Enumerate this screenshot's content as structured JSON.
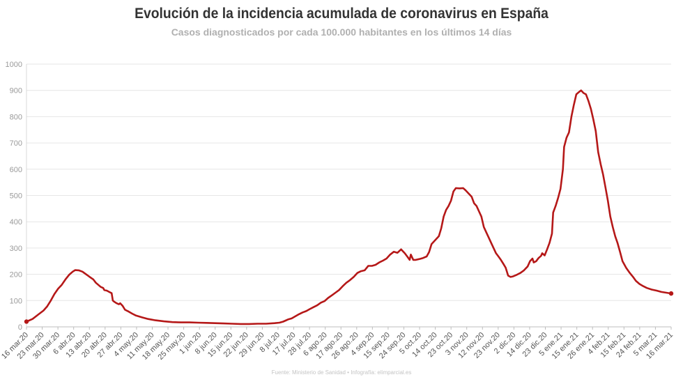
{
  "header": {
    "title": "Evolución de la incidencia acumulada de coronavirus en España",
    "subtitle": "Casos diagnosticados por cada 100.000 habitantes en los últimos 14 días"
  },
  "footer": {
    "source": "Fuente: Ministerio de Sanidad • Infografía: elimparcial.es"
  },
  "chart_data": {
    "type": "line",
    "title": "Evolución de la incidencia acumulada de coronavirus en España",
    "subtitle": "Casos diagnosticados por cada 100.000 habitantes en los últimos 14 días",
    "xlabel": "",
    "ylabel": "",
    "ylim": [
      0,
      1000
    ],
    "yticks": [
      "0",
      "100",
      "200",
      "300",
      "400",
      "500",
      "600",
      "700",
      "800",
      "900",
      "1000"
    ],
    "grid": true,
    "legend": "none",
    "line_color": "#b51818",
    "grid_color": "#e6e6e6",
    "categories": [
      "16 mar.20",
      "23 mar.20",
      "30 mar.20",
      "6 abr.20",
      "13 abr.20",
      "20 abr.20",
      "27 abr.20",
      "4 may.20",
      "11 may.20",
      "18 may.20",
      "25 may.20",
      "1 jun.20",
      "8 jun.20",
      "15 jun.20",
      "22 jun.20",
      "29 jun.20",
      "8 jul.20",
      "17 jul.20",
      "28 jul.20",
      "6 ago.20",
      "17 ago.20",
      "26 ago.20",
      "4 sep.20",
      "15 sep.20",
      "24 sep.20",
      "5 oct.20",
      "14 oct.20",
      "23 oct.20",
      "3 nov.20",
      "12 nov.20",
      "23 nov.20",
      "2 dic.20",
      "14 dic.20",
      "23 dic.20",
      "5 ene.21",
      "15 ene.21",
      "26 ene.21",
      "4 feb.21",
      "15 feb.21",
      "24 feb.21",
      "5 mar.21",
      "16 mar.21"
    ],
    "series": [
      {
        "values": [
          [
            0,
            20
          ],
          [
            5,
            30
          ],
          [
            10,
            48
          ],
          [
            14,
            62
          ],
          [
            17,
            78
          ],
          [
            20,
            100
          ],
          [
            23,
            125
          ],
          [
            26,
            145
          ],
          [
            29,
            160
          ],
          [
            32,
            180
          ],
          [
            35,
            198
          ],
          [
            38,
            210
          ],
          [
            40,
            216
          ],
          [
            43,
            215
          ],
          [
            46,
            210
          ],
          [
            49,
            200
          ],
          [
            52,
            190
          ],
          [
            55,
            180
          ],
          [
            57,
            168
          ],
          [
            59,
            160
          ],
          [
            61,
            152
          ],
          [
            63,
            148
          ],
          [
            64,
            140
          ],
          [
            66,
            138
          ],
          [
            68,
            133
          ],
          [
            70,
            128
          ],
          [
            71,
            100
          ],
          [
            72,
            96
          ],
          [
            74,
            90
          ],
          [
            76,
            86
          ],
          [
            77,
            90
          ],
          [
            79,
            80
          ],
          [
            81,
            65
          ],
          [
            84,
            58
          ],
          [
            87,
            50
          ],
          [
            90,
            43
          ],
          [
            95,
            36
          ],
          [
            100,
            30
          ],
          [
            106,
            25
          ],
          [
            113,
            21
          ],
          [
            120,
            18
          ],
          [
            127,
            17
          ],
          [
            134,
            17
          ],
          [
            141,
            16
          ],
          [
            148,
            15
          ],
          [
            155,
            14
          ],
          [
            162,
            13
          ],
          [
            169,
            12
          ],
          [
            176,
            11
          ],
          [
            183,
            11
          ],
          [
            190,
            12
          ],
          [
            197,
            12
          ],
          [
            204,
            14
          ],
          [
            208,
            16
          ],
          [
            211,
            20
          ],
          [
            213,
            24
          ],
          [
            215,
            28
          ],
          [
            218,
            32
          ],
          [
            221,
            40
          ],
          [
            224,
            48
          ],
          [
            227,
            55
          ],
          [
            230,
            60
          ],
          [
            233,
            68
          ],
          [
            236,
            75
          ],
          [
            239,
            82
          ],
          [
            242,
            92
          ],
          [
            245,
            98
          ],
          [
            248,
            110
          ],
          [
            251,
            120
          ],
          [
            254,
            130
          ],
          [
            257,
            140
          ],
          [
            260,
            155
          ],
          [
            263,
            168
          ],
          [
            266,
            178
          ],
          [
            269,
            190
          ],
          [
            272,
            205
          ],
          [
            275,
            212
          ],
          [
            278,
            215
          ],
          [
            281,
            232
          ],
          [
            284,
            232
          ],
          [
            287,
            236
          ],
          [
            290,
            245
          ],
          [
            293,
            252
          ],
          [
            296,
            260
          ],
          [
            299,
            275
          ],
          [
            302,
            286
          ],
          [
            305,
            282
          ],
          [
            308,
            295
          ],
          [
            311,
            280
          ],
          [
            313,
            268
          ],
          [
            315,
            255
          ],
          [
            316,
            275
          ],
          [
            318,
            255
          ],
          [
            320,
            255
          ],
          [
            323,
            258
          ],
          [
            326,
            262
          ],
          [
            329,
            268
          ],
          [
            331,
            285
          ],
          [
            333,
            315
          ],
          [
            336,
            330
          ],
          [
            339,
            345
          ],
          [
            341,
            375
          ],
          [
            343,
            420
          ],
          [
            345,
            445
          ],
          [
            347,
            460
          ],
          [
            349,
            480
          ],
          [
            351,
            515
          ],
          [
            353,
            528
          ],
          [
            356,
            527
          ],
          [
            359,
            528
          ],
          [
            361,
            520
          ],
          [
            364,
            505
          ],
          [
            366,
            495
          ],
          [
            368,
            470
          ],
          [
            370,
            460
          ],
          [
            372,
            440
          ],
          [
            374,
            420
          ],
          [
            376,
            380
          ],
          [
            378,
            360
          ],
          [
            380,
            340
          ],
          [
            382,
            320
          ],
          [
            384,
            300
          ],
          [
            386,
            280
          ],
          [
            388,
            268
          ],
          [
            390,
            255
          ],
          [
            392,
            240
          ],
          [
            394,
            225
          ],
          [
            396,
            195
          ],
          [
            398,
            190
          ],
          [
            400,
            192
          ],
          [
            403,
            198
          ],
          [
            406,
            205
          ],
          [
            409,
            215
          ],
          [
            412,
            230
          ],
          [
            414,
            250
          ],
          [
            416,
            260
          ],
          [
            417,
            245
          ],
          [
            419,
            250
          ],
          [
            421,
            262
          ],
          [
            423,
            270
          ],
          [
            424,
            280
          ],
          [
            426,
            272
          ],
          [
            428,
            295
          ],
          [
            430,
            320
          ],
          [
            432,
            355
          ],
          [
            433,
            435
          ],
          [
            435,
            460
          ],
          [
            437,
            490
          ],
          [
            439,
            525
          ],
          [
            441,
            600
          ],
          [
            442,
            685
          ],
          [
            444,
            720
          ],
          [
            446,
            740
          ],
          [
            448,
            800
          ],
          [
            450,
            845
          ],
          [
            452,
            885
          ],
          [
            454,
            893
          ],
          [
            456,
            900
          ],
          [
            458,
            890
          ],
          [
            460,
            885
          ],
          [
            462,
            860
          ],
          [
            464,
            830
          ],
          [
            466,
            790
          ],
          [
            468,
            745
          ],
          [
            470,
            665
          ],
          [
            472,
            620
          ],
          [
            474,
            580
          ],
          [
            476,
            530
          ],
          [
            478,
            480
          ],
          [
            480,
            420
          ],
          [
            482,
            380
          ],
          [
            484,
            345
          ],
          [
            486,
            318
          ],
          [
            488,
            285
          ],
          [
            490,
            250
          ],
          [
            493,
            225
          ],
          [
            496,
            205
          ],
          [
            499,
            188
          ],
          [
            501,
            175
          ],
          [
            504,
            163
          ],
          [
            507,
            155
          ],
          [
            510,
            148
          ],
          [
            514,
            142
          ],
          [
            518,
            138
          ],
          [
            522,
            133
          ],
          [
            526,
            130
          ],
          [
            530,
            127
          ]
        ]
      }
    ]
  }
}
